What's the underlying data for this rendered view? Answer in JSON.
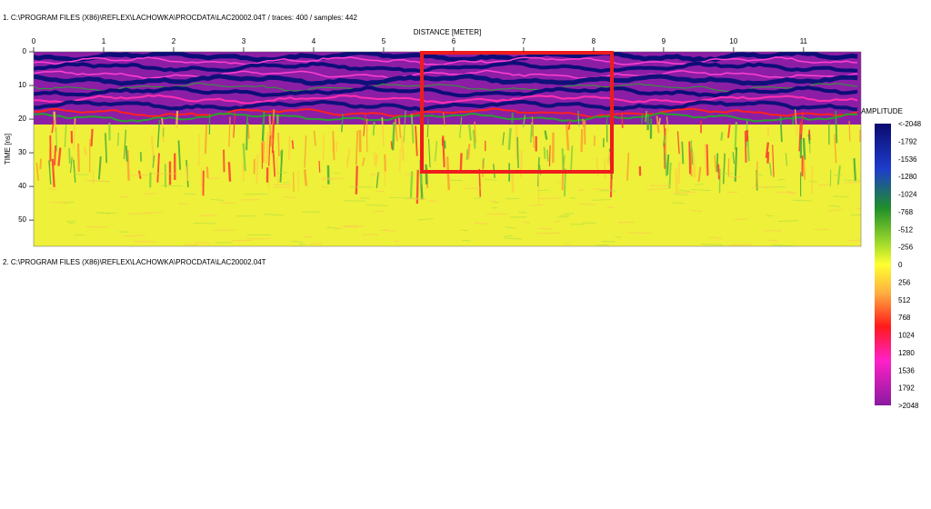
{
  "panels": [
    {
      "header": "1. C:\\PROGRAM FILES (X86)\\REFLEX\\LACHOWKA\\PROCDATA\\LAC20002.04T / traces: 400 / samples: 442",
      "x_axis_title": "DISTANCE [METER]",
      "y_axis_title": "TIME [ns]",
      "xlim": [
        0,
        11.82
      ],
      "xticks": [
        0,
        1,
        2,
        3,
        4,
        5,
        6,
        7,
        8,
        9,
        10,
        11
      ],
      "ylim": [
        0,
        57.8
      ],
      "yticks": [
        0,
        10,
        20,
        30,
        40,
        50
      ]
    },
    {
      "header": "2. C:\\PROGRAM FILES (X86)\\REFLEX\\LACHOWKA\\PROCDATA\\LAC20002.04T"
    }
  ],
  "colorbar": {
    "title": "AMPLITUDE",
    "labels": [
      "<-2048",
      "-1792",
      "-1536",
      "-1280",
      "-1024",
      "-768",
      "-512",
      "-256",
      "0",
      "256",
      "512",
      "768",
      "1024",
      "1280",
      "1536",
      "1792",
      ">2048"
    ]
  }
}
